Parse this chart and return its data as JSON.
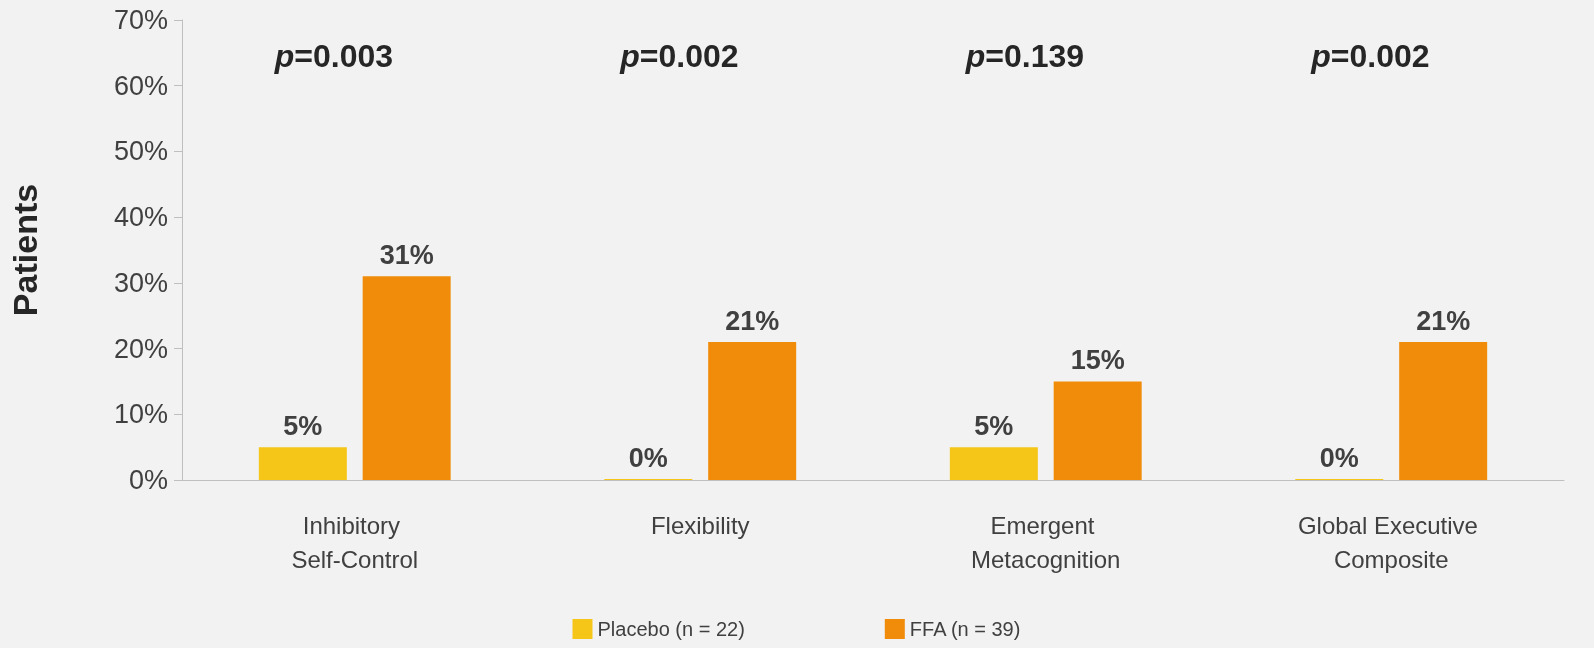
{
  "chart_data": {
    "type": "bar",
    "ylabel": "Patients",
    "categories": [
      "Inhibitory Self-Control",
      "Flexibility",
      "Emergent Metacognition",
      "Global Executive Composite"
    ],
    "series": [
      {
        "name": "Placebo (n = 22)",
        "color": "#f5c518",
        "values": [
          5,
          0,
          5,
          0
        ],
        "value_labels": [
          "5%",
          "0%",
          "5%",
          "0%"
        ]
      },
      {
        "name": "FFA (n = 39)",
        "color": "#f08c0a",
        "values": [
          31,
          21,
          15,
          21
        ],
        "value_labels": [
          "31%",
          "21%",
          "15%",
          "21%"
        ]
      }
    ],
    "ylim": [
      0,
      70
    ],
    "yticks": [
      {
        "value": 0,
        "label": "0%"
      },
      {
        "value": 10,
        "label": "10%"
      },
      {
        "value": 20,
        "label": "20%"
      },
      {
        "value": 30,
        "label": "30%"
      },
      {
        "value": 40,
        "label": "40%"
      },
      {
        "value": 50,
        "label": "50%"
      },
      {
        "value": 60,
        "label": "60%"
      },
      {
        "value": 70,
        "label": "70%"
      }
    ],
    "annotations": [
      "p=0.003",
      "p=0.002",
      "p=0.139",
      "p=0.002"
    ],
    "grid": false,
    "legend": "bottom"
  }
}
